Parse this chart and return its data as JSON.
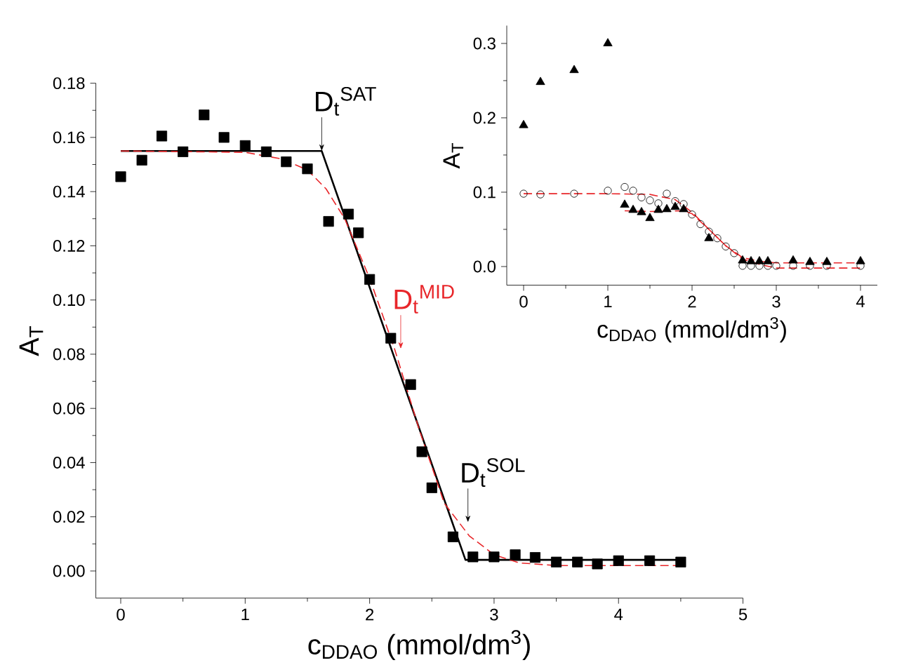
{
  "chart_data": [
    {
      "type": "scatter",
      "xlabel": "c$_{DDAO}$ (mmol/dm$^{3}$)",
      "ylabel": "A$_{T}$",
      "xlim": [
        -0.2,
        5
      ],
      "ylim": [
        -0.01,
        0.18
      ],
      "xticks": [
        0,
        1,
        2,
        3,
        4,
        5
      ],
      "yticks": [
        {
          "value": 0,
          "label": "0.00"
        },
        {
          "value": 0.02,
          "label": "0.02"
        },
        {
          "value": 0.04,
          "label": "0.04"
        },
        {
          "value": 0.06,
          "label": "0.06"
        },
        {
          "value": 0.08,
          "label": "0.08"
        },
        {
          "value": 0.1,
          "label": "0.10"
        },
        {
          "value": 0.12,
          "label": "0.12"
        },
        {
          "value": 0.14,
          "label": "0.14"
        },
        {
          "value": 0.16,
          "label": "0.16"
        },
        {
          "value": 0.18,
          "label": "0.18"
        }
      ],
      "series": [
        {
          "type": "scatter",
          "color": "#000000",
          "marker": "square",
          "x": [
            0,
            0.17,
            0.33,
            0.5,
            0.67,
            0.83,
            1,
            1.17,
            1.33,
            1.5,
            1.67,
            1.83,
            1.91,
            2,
            2.17,
            2.33,
            2.42,
            2.5,
            2.67,
            2.83,
            3,
            3.17,
            3.33,
            3.5,
            3.67,
            3.83,
            4,
            4.25,
            4.5
          ],
          "values": [
            0.1455,
            0.1516,
            0.1605,
            0.1547,
            0.1683,
            0.16,
            0.157,
            0.1547,
            0.151,
            0.1484,
            0.129,
            0.1317,
            0.1248,
            0.1076,
            0.0859,
            0.0688,
            0.044,
            0.0307,
            0.0126,
            0.0052,
            0.0052,
            0.006,
            0.005,
            0.0033,
            0.0033,
            0.0026,
            0.0038,
            0.0038,
            0.0033
          ]
        },
        {
          "type": "line",
          "color": "#000000",
          "line_style": "solid",
          "x": [
            0,
            1.615,
            2.77,
            4.5
          ],
          "values": [
            0.155,
            0.155,
            0.0041,
            0.0041
          ]
        },
        {
          "type": "line",
          "color": "#e8262a",
          "line_style": "dashed",
          "x": [
            0,
            1,
            1.3,
            1.5,
            1.65,
            1.8,
            2,
            2.2,
            2.4,
            2.6,
            2.8,
            3,
            3.2,
            3.5,
            4.5
          ],
          "values": [
            0.155,
            0.1545,
            0.152,
            0.148,
            0.141,
            0.13,
            0.108,
            0.082,
            0.052,
            0.025,
            0.013,
            0.006,
            0.003,
            0.002,
            0.002
          ]
        }
      ],
      "annotations": [
        {
          "text": "D$_{t}$$^{SAT}$",
          "x": 1.615,
          "y": 0.155
        },
        {
          "text": "D$_{t}$$^{MID}$",
          "x": 2.25,
          "y": 0.082
        },
        {
          "text": "D$_{t}$$^{SOL}$",
          "x": 2.79,
          "y": 0.018
        }
      ]
    },
    {
      "type": "scatter",
      "xlabel": "c$_{DDAO}$ (mmol/dm$^{3}$)",
      "ylabel": "A$_{T}$",
      "xlim": [
        -0.2,
        4.2
      ],
      "ylim": [
        -0.025,
        0.324
      ],
      "xticks": [
        0,
        1,
        2,
        3,
        4
      ],
      "yticks": [
        {
          "value": 0,
          "label": "0.0"
        },
        {
          "value": 0.1,
          "label": "0.1"
        },
        {
          "value": 0.2,
          "label": "0.2"
        },
        {
          "value": 0.3,
          "label": "0.3"
        }
      ],
      "series": [
        {
          "type": "scatter",
          "color": "#000000",
          "marker": "triangle",
          "x": [
            0,
            0.2,
            0.6,
            1.0,
            1.2,
            1.3,
            1.4,
            1.5,
            1.6,
            1.7,
            1.8,
            1.9,
            2.2,
            2.6,
            2.7,
            2.8,
            2.9,
            3.2,
            3.4,
            3.6,
            4.0
          ],
          "values": [
            0.19,
            0.248,
            0.264,
            0.3,
            0.083,
            0.076,
            0.073,
            0.065,
            0.076,
            0.077,
            0.08,
            0.077,
            0.038,
            0.008,
            0.007,
            0.007,
            0.007,
            0.008,
            0.006,
            0.006,
            0.007
          ]
        },
        {
          "type": "scatter",
          "color": "#000000",
          "marker": "circle",
          "x": [
            0,
            0.2,
            0.6,
            1.0,
            1.2,
            1.3,
            1.4,
            1.5,
            1.6,
            1.7,
            1.8,
            1.9,
            2.0,
            2.1,
            2.2,
            2.3,
            2.4,
            2.5,
            2.6,
            2.7,
            2.8,
            2.9,
            3.0,
            3.2,
            3.4,
            3.6,
            4.0
          ],
          "values": [
            0.098,
            0.097,
            0.098,
            0.102,
            0.107,
            0.102,
            0.093,
            0.089,
            0.085,
            0.098,
            0.088,
            0.084,
            0.07,
            0.057,
            0.047,
            0.038,
            0.027,
            0.018,
            0.001,
            0.001,
            0.001,
            0.001,
            0.001,
            0.001,
            0.001,
            0.001,
            0.001
          ]
        },
        {
          "type": "line",
          "color": "#e8262a",
          "line_style": "dashed",
          "x": [
            1.2,
            1.5,
            1.9,
            2.0,
            2.2,
            2.4,
            2.6,
            2.8,
            3.0,
            4.0
          ],
          "values": [
            0.075,
            0.074,
            0.075,
            0.071,
            0.05,
            0.028,
            0.012,
            0.007,
            0.005,
            0.005
          ]
        },
        {
          "type": "line",
          "color": "#e8262a",
          "line_style": "dashed",
          "x": [
            0,
            1.0,
            1.5,
            1.8,
            2.0,
            2.2,
            2.4,
            2.6,
            2.8,
            3.0,
            4.0
          ],
          "values": [
            0.098,
            0.098,
            0.097,
            0.09,
            0.073,
            0.05,
            0.028,
            0.01,
            0.003,
            -0.002,
            -0.002
          ]
        }
      ]
    }
  ]
}
